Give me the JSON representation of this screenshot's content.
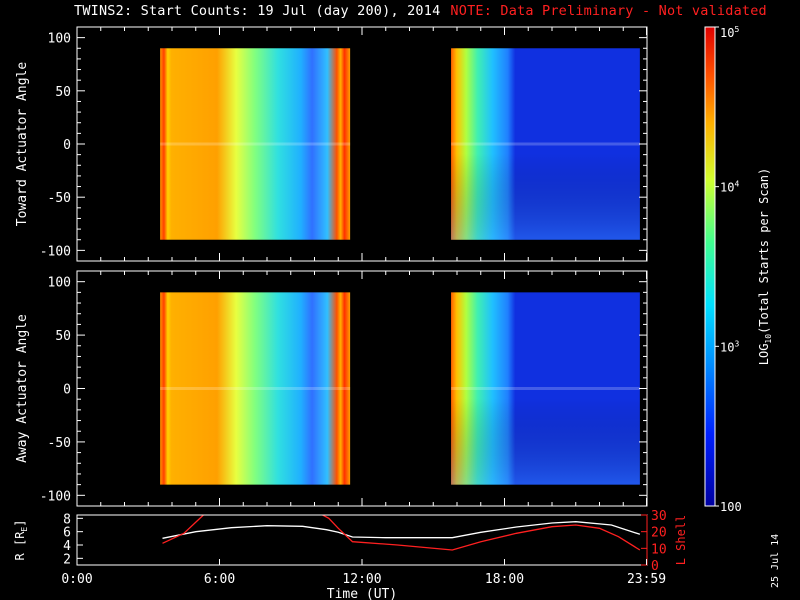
{
  "header": {
    "title": "TWINS2: Start Counts: 19 Jul (day 200), 2014",
    "note": "NOTE: Data Preliminary - Not validated"
  },
  "footer": {
    "datestamp": "25 Jul 14"
  },
  "colors": {
    "background": "#000000",
    "axes": "#ffffff",
    "note": "#ff2020",
    "r_line": "#ffffff",
    "l_line": "#ff2020"
  },
  "chart_data": [
    {
      "type": "heatmap",
      "panel": "toward",
      "ylabel": "Toward Actuator Angle",
      "ylim": [
        -110,
        110
      ],
      "yticks": [
        100,
        50,
        0,
        -50,
        -100
      ],
      "ytick_labels": [
        "100",
        "50",
        "0",
        "-50",
        "-100"
      ],
      "xlim": [
        0,
        24
      ],
      "x_segments_hours": [
        [
          3.5,
          11.5
        ],
        [
          15.75,
          23.7
        ]
      ],
      "y_extent": [
        -90,
        90
      ],
      "value_scale": "log10",
      "value_range": [
        100,
        100000
      ]
    },
    {
      "type": "heatmap",
      "panel": "away",
      "ylabel": "Away Actuator Angle",
      "ylim": [
        -110,
        110
      ],
      "yticks": [
        100,
        50,
        0,
        -50,
        -100
      ],
      "ytick_labels": [
        "100",
        "50",
        "0",
        "-50",
        "-100"
      ],
      "xlim": [
        0,
        24
      ],
      "x_segments_hours": [
        [
          3.5,
          11.5
        ],
        [
          15.75,
          23.7
        ]
      ],
      "y_extent": [
        -90,
        90
      ],
      "value_scale": "log10",
      "value_range": [
        100,
        100000
      ]
    },
    {
      "type": "line",
      "panel": "orbit",
      "xlabel": "Time (UT)",
      "xlim": [
        0,
        24
      ],
      "xticks": [
        0,
        6,
        12,
        18,
        23.98
      ],
      "xtick_labels": [
        "0:00",
        "6:00",
        "12:00",
        "18:00",
        "23:59"
      ],
      "left_axis": {
        "label": "R [R",
        "label_sub": "E",
        "label_end": "]",
        "ylim": [
          1,
          8.5
        ],
        "ticks": [
          8,
          6,
          4,
          2
        ],
        "tick_labels": [
          "8",
          "6",
          "4",
          "2"
        ]
      },
      "right_axis": {
        "label": "L Shell",
        "ylim": [
          0,
          30
        ],
        "ticks": [
          30,
          20,
          10,
          0
        ],
        "tick_labels": [
          "30",
          "20",
          "10",
          "0"
        ]
      },
      "series": [
        {
          "axis": "left",
          "color": "#ffffff",
          "x": [
            3.6,
            5.0,
            6.5,
            8.0,
            9.5,
            10.5,
            11.0,
            11.6,
            13.0,
            14.5,
            15.8,
            17.0,
            18.5,
            20.0,
            21.0,
            22.5,
            23.7
          ],
          "values": [
            5.0,
            6.0,
            6.6,
            6.9,
            6.8,
            6.3,
            5.9,
            5.2,
            5.1,
            5.1,
            5.1,
            5.9,
            6.7,
            7.3,
            7.5,
            7.0,
            5.6
          ]
        },
        {
          "axis": "right",
          "color": "#ff2020",
          "x": [
            3.6,
            4.5,
            5.1,
            5.4
          ],
          "values": [
            13,
            19,
            27,
            31
          ]
        },
        {
          "axis": "right",
          "color": "#ff2020",
          "x": [
            10.2,
            10.6,
            11.0,
            11.6,
            13.5,
            15.8,
            17.0,
            18.5,
            20.0,
            21.0,
            22.0,
            22.8,
            23.7
          ],
          "values": [
            31,
            28,
            22,
            14,
            12,
            9,
            14,
            19,
            23,
            24,
            22,
            17,
            9
          ]
        }
      ]
    },
    {
      "type": "colorbar",
      "label": "LOG",
      "label_sub": "10",
      "label_end": "(Total Starts per Scan)",
      "scale": "log10",
      "range": [
        100,
        100000
      ],
      "tick_values": [
        100000,
        10000,
        1000,
        100
      ],
      "tick_labels": [
        {
          "base": "10",
          "exp": "5"
        },
        {
          "base": "10",
          "exp": "4"
        },
        {
          "base": "10",
          "exp": "3"
        },
        {
          "base": "100",
          "exp": ""
        }
      ]
    }
  ]
}
